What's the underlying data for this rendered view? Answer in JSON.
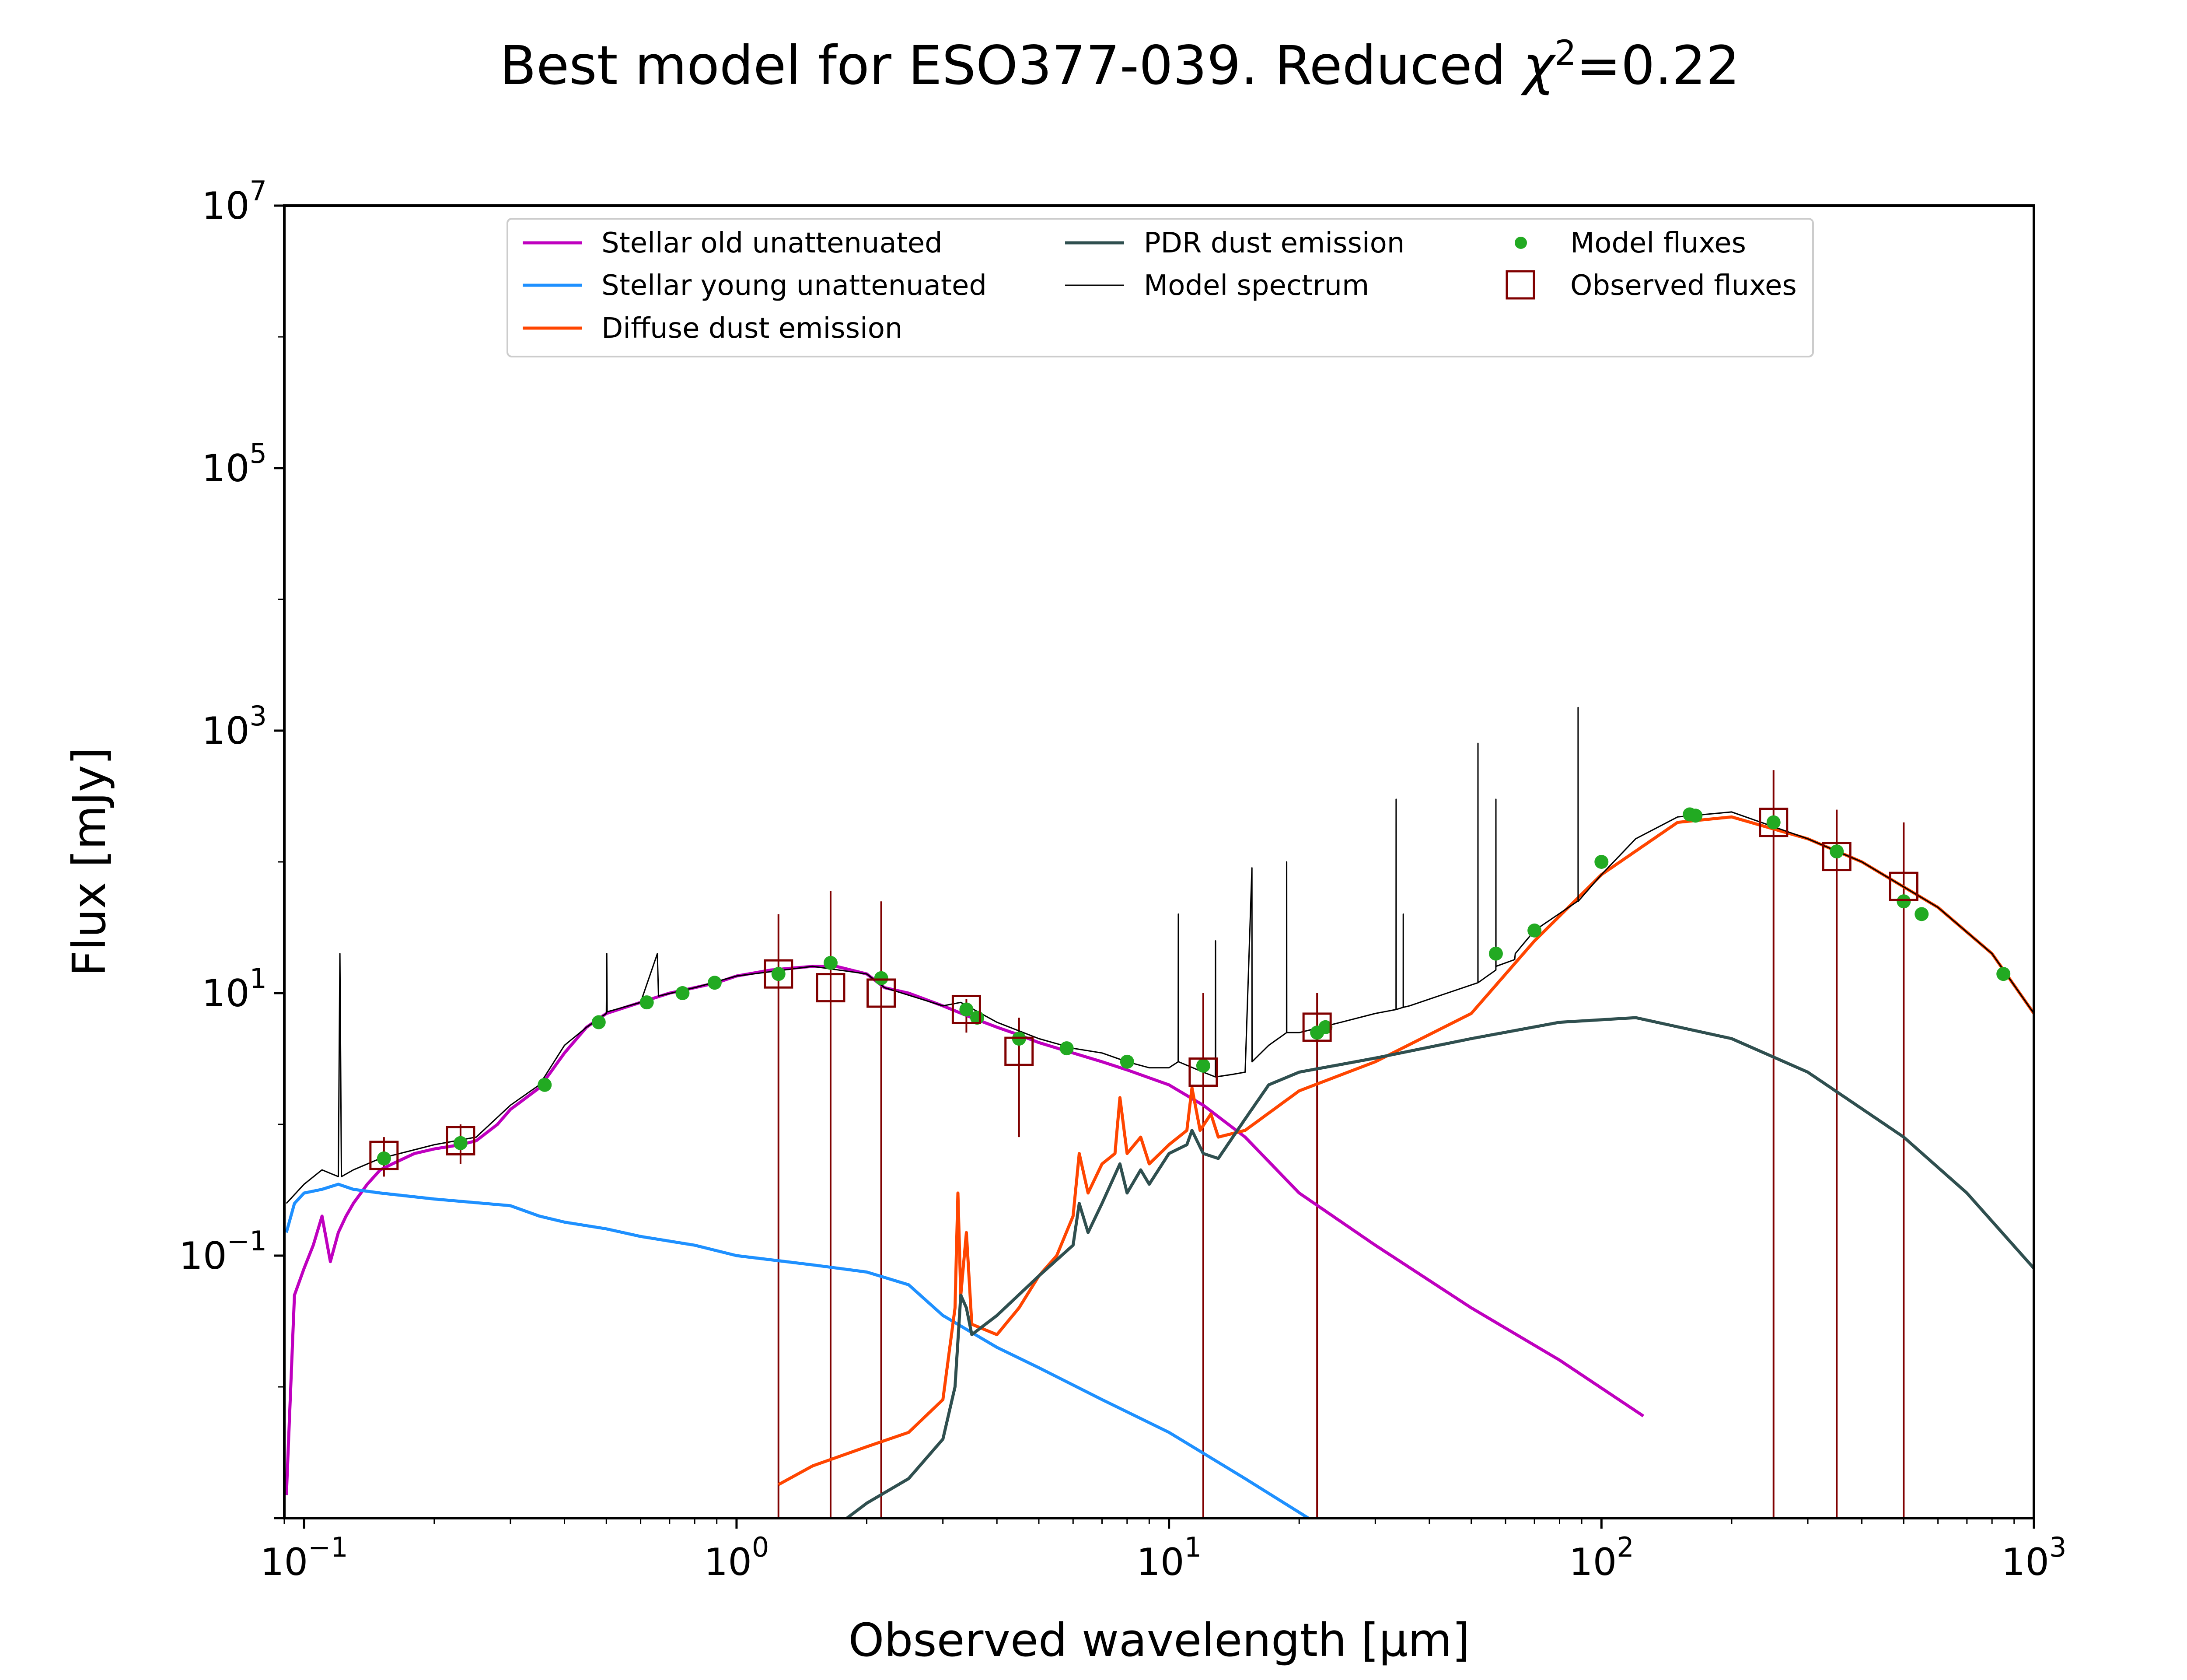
{
  "chart_data": {
    "type": "line",
    "title_main": "Best model for ESO377-039. Reduced ",
    "title_chi": "χ",
    "title_sup": "2",
    "title_value": "=0.22",
    "xlabel": "Observed wavelength [μm]",
    "ylabel": "Flux [mJy]",
    "x_scale": "log",
    "y_scale": "log",
    "xlim": [
      0.09,
      1000
    ],
    "ylim": [
      0.001,
      10000000
    ],
    "x_ticks": [
      {
        "value": 0.1,
        "base": "10",
        "exp": "−1"
      },
      {
        "value": 1,
        "base": "10",
        "exp": "0"
      },
      {
        "value": 10,
        "base": "10",
        "exp": "1"
      },
      {
        "value": 100,
        "base": "10",
        "exp": "2"
      },
      {
        "value": 1000,
        "base": "10",
        "exp": "3"
      }
    ],
    "y_ticks": [
      {
        "value": 0.1,
        "base": "10",
        "exp": "−1"
      },
      {
        "value": 10,
        "base": "10",
        "exp": "1"
      },
      {
        "value": 1000,
        "base": "10",
        "exp": "3"
      },
      {
        "value": 100000,
        "base": "10",
        "exp": "5"
      },
      {
        "value": 10000000,
        "base": "10",
        "exp": "7"
      }
    ],
    "legend_position": "top-center",
    "legend": [
      {
        "label": "Stellar old unattenuated",
        "kind": "line",
        "color": "#bf00bf"
      },
      {
        "label": "Stellar young unattenuated",
        "kind": "line",
        "color": "#1e90ff"
      },
      {
        "label": "Diffuse dust emission",
        "kind": "line",
        "color": "#ff4500"
      },
      {
        "label": "PDR dust emission",
        "kind": "line",
        "color": "#2f4f4f"
      },
      {
        "label": "Model spectrum",
        "kind": "thin",
        "color": "#000000"
      },
      {
        "label": "Model fluxes",
        "kind": "dot",
        "color": "#22aa22"
      },
      {
        "label": "Observed fluxes",
        "kind": "square",
        "color": "#800000"
      }
    ],
    "series": [
      {
        "name": "Stellar old unattenuated",
        "color": "#bf00bf",
        "width": 7,
        "points": [
          [
            0.091,
            0.0015
          ],
          [
            0.095,
            0.05
          ],
          [
            0.1,
            0.08
          ],
          [
            0.105,
            0.12
          ],
          [
            0.11,
            0.2
          ],
          [
            0.115,
            0.09
          ],
          [
            0.12,
            0.15
          ],
          [
            0.125,
            0.2
          ],
          [
            0.13,
            0.25
          ],
          [
            0.14,
            0.35
          ],
          [
            0.15,
            0.45
          ],
          [
            0.16,
            0.5
          ],
          [
            0.18,
            0.6
          ],
          [
            0.2,
            0.65
          ],
          [
            0.23,
            0.7
          ],
          [
            0.25,
            0.75
          ],
          [
            0.28,
            1.0
          ],
          [
            0.3,
            1.3
          ],
          [
            0.35,
            1.9
          ],
          [
            0.4,
            3.5
          ],
          [
            0.45,
            5.5
          ],
          [
            0.5,
            7.0
          ],
          [
            0.6,
            8.5
          ],
          [
            0.7,
            10
          ],
          [
            0.8,
            11
          ],
          [
            0.9,
            12
          ],
          [
            1.0,
            13.5
          ],
          [
            1.2,
            15
          ],
          [
            1.5,
            16
          ],
          [
            1.7,
            16
          ],
          [
            2.0,
            14
          ],
          [
            2.2,
            11
          ],
          [
            2.5,
            10
          ],
          [
            3.0,
            8.0
          ],
          [
            3.5,
            6.5
          ],
          [
            4.0,
            5.5
          ],
          [
            4.5,
            4.8
          ],
          [
            5.0,
            4.2
          ],
          [
            6.0,
            3.5
          ],
          [
            7.0,
            3.0
          ],
          [
            8.0,
            2.6
          ],
          [
            10,
            2.0
          ],
          [
            12,
            1.4
          ],
          [
            15,
            0.8
          ],
          [
            20,
            0.3
          ],
          [
            30,
            0.12
          ],
          [
            50,
            0.04
          ],
          [
            80,
            0.016
          ],
          [
            125,
            0.006
          ]
        ]
      },
      {
        "name": "Stellar young unattenuated",
        "color": "#1e90ff",
        "width": 7,
        "points": [
          [
            0.091,
            0.15
          ],
          [
            0.095,
            0.25
          ],
          [
            0.1,
            0.3
          ],
          [
            0.11,
            0.32
          ],
          [
            0.12,
            0.35
          ],
          [
            0.13,
            0.32
          ],
          [
            0.15,
            0.3
          ],
          [
            0.2,
            0.27
          ],
          [
            0.3,
            0.24
          ],
          [
            0.35,
            0.2
          ],
          [
            0.4,
            0.18
          ],
          [
            0.5,
            0.16
          ],
          [
            0.6,
            0.14
          ],
          [
            0.8,
            0.12
          ],
          [
            1.0,
            0.1
          ],
          [
            1.5,
            0.085
          ],
          [
            2.0,
            0.075
          ],
          [
            2.5,
            0.06
          ],
          [
            3.0,
            0.035
          ],
          [
            4.0,
            0.02
          ],
          [
            5.0,
            0.014
          ],
          [
            7.0,
            0.008
          ],
          [
            10,
            0.0045
          ],
          [
            15,
            0.002
          ],
          [
            21,
            0.001
          ]
        ]
      },
      {
        "name": "Diffuse dust emission",
        "color": "#ff4500",
        "width": 7,
        "points": [
          [
            1.25,
            0.0018
          ],
          [
            1.5,
            0.0025
          ],
          [
            2.0,
            0.0035
          ],
          [
            2.5,
            0.0045
          ],
          [
            3.0,
            0.008
          ],
          [
            3.2,
            0.04
          ],
          [
            3.25,
            0.3
          ],
          [
            3.3,
            0.05
          ],
          [
            3.4,
            0.15
          ],
          [
            3.5,
            0.03
          ],
          [
            4.0,
            0.025
          ],
          [
            4.5,
            0.04
          ],
          [
            5.0,
            0.07
          ],
          [
            5.5,
            0.1
          ],
          [
            6.0,
            0.2
          ],
          [
            6.2,
            0.6
          ],
          [
            6.5,
            0.3
          ],
          [
            7.0,
            0.5
          ],
          [
            7.5,
            0.6
          ],
          [
            7.7,
            1.6
          ],
          [
            8.0,
            0.6
          ],
          [
            8.6,
            0.8
          ],
          [
            9.0,
            0.5
          ],
          [
            10,
            0.7
          ],
          [
            11,
            0.9
          ],
          [
            11.3,
            1.9
          ],
          [
            11.8,
            0.9
          ],
          [
            12.5,
            1.2
          ],
          [
            13,
            0.8
          ],
          [
            15,
            0.9
          ],
          [
            20,
            1.8
          ],
          [
            30,
            3.0
          ],
          [
            50,
            7.0
          ],
          [
            70,
            25
          ],
          [
            100,
            80
          ],
          [
            150,
            200
          ],
          [
            200,
            220
          ],
          [
            300,
            150
          ],
          [
            400,
            100
          ],
          [
            600,
            45
          ],
          [
            800,
            20
          ],
          [
            1000,
            7
          ]
        ]
      },
      {
        "name": "PDR dust emission",
        "color": "#2f4f4f",
        "width": 7,
        "points": [
          [
            1.8,
            0.001
          ],
          [
            2.0,
            0.0013
          ],
          [
            2.5,
            0.002
          ],
          [
            3.0,
            0.004
          ],
          [
            3.2,
            0.01
          ],
          [
            3.3,
            0.05
          ],
          [
            3.4,
            0.04
          ],
          [
            3.5,
            0.025
          ],
          [
            4.0,
            0.035
          ],
          [
            5.0,
            0.07
          ],
          [
            6.0,
            0.12
          ],
          [
            6.2,
            0.25
          ],
          [
            6.5,
            0.15
          ],
          [
            7.0,
            0.25
          ],
          [
            7.7,
            0.5
          ],
          [
            8.0,
            0.3
          ],
          [
            8.6,
            0.45
          ],
          [
            9.0,
            0.35
          ],
          [
            10,
            0.6
          ],
          [
            11,
            0.7
          ],
          [
            11.3,
            0.9
          ],
          [
            12,
            0.6
          ],
          [
            13,
            0.55
          ],
          [
            15,
            1.1
          ],
          [
            17,
            2.0
          ],
          [
            20,
            2.5
          ],
          [
            30,
            3.2
          ],
          [
            50,
            4.5
          ],
          [
            80,
            6.0
          ],
          [
            120,
            6.5
          ],
          [
            200,
            4.5
          ],
          [
            300,
            2.5
          ],
          [
            500,
            0.8
          ],
          [
            700,
            0.3
          ],
          [
            1000,
            0.08
          ]
        ]
      },
      {
        "name": "Model spectrum",
        "color": "#000000",
        "width": 3,
        "points": [
          [
            0.091,
            0.25
          ],
          [
            0.1,
            0.35
          ],
          [
            0.11,
            0.45
          ],
          [
            0.12,
            0.4
          ],
          [
            0.121,
            20
          ],
          [
            0.122,
            0.4
          ],
          [
            0.13,
            0.45
          ],
          [
            0.15,
            0.55
          ],
          [
            0.2,
            0.7
          ],
          [
            0.25,
            0.8
          ],
          [
            0.3,
            1.4
          ],
          [
            0.35,
            2.0
          ],
          [
            0.4,
            4.0
          ],
          [
            0.45,
            5.5
          ],
          [
            0.5,
            7.0
          ],
          [
            0.501,
            20
          ],
          [
            0.502,
            7.2
          ],
          [
            0.6,
            8.5
          ],
          [
            0.656,
            20
          ],
          [
            0.66,
            9.5
          ],
          [
            0.8,
            11
          ],
          [
            1.0,
            13.5
          ],
          [
            1.5,
            16
          ],
          [
            2.0,
            14
          ],
          [
            2.2,
            11
          ],
          [
            3.0,
            8.0
          ],
          [
            3.3,
            8.5
          ],
          [
            4.0,
            6.0
          ],
          [
            5.0,
            4.5
          ],
          [
            6.0,
            3.8
          ],
          [
            7.0,
            3.5
          ],
          [
            8.0,
            3.0
          ],
          [
            9.0,
            2.7
          ],
          [
            10,
            2.7
          ],
          [
            10.5,
            3.0
          ],
          [
            10.51,
            40
          ],
          [
            10.52,
            3.0
          ],
          [
            12,
            2.5
          ],
          [
            12.8,
            2.3
          ],
          [
            12.81,
            25
          ],
          [
            12.82,
            2.3
          ],
          [
            14,
            2.4
          ],
          [
            15,
            2.5
          ],
          [
            15.55,
            90
          ],
          [
            15.56,
            3.0
          ],
          [
            17,
            4.0
          ],
          [
            18.7,
            5.0
          ],
          [
            18.71,
            100
          ],
          [
            18.72,
            5.0
          ],
          [
            20,
            5.0
          ],
          [
            25,
            6.0
          ],
          [
            30,
            7.0
          ],
          [
            33.5,
            7.5
          ],
          [
            33.51,
            300
          ],
          [
            33.52,
            7.5
          ],
          [
            34.8,
            7.8
          ],
          [
            34.81,
            40
          ],
          [
            34.82,
            7.8
          ],
          [
            36,
            8.0
          ],
          [
            40,
            9.0
          ],
          [
            51.8,
            12
          ],
          [
            51.81,
            800
          ],
          [
            51.82,
            12
          ],
          [
            57,
            15
          ],
          [
            57.01,
            300
          ],
          [
            57.02,
            16
          ],
          [
            63,
            18
          ],
          [
            63.2,
            20
          ],
          [
            70,
            30
          ],
          [
            88,
            50
          ],
          [
            88.3,
            50
          ],
          [
            88.31,
            1500
          ],
          [
            88.32,
            50
          ],
          [
            100,
            80
          ],
          [
            120,
            150
          ],
          [
            150,
            220
          ],
          [
            200,
            240
          ],
          [
            300,
            150
          ],
          [
            400,
            100
          ],
          [
            600,
            45
          ],
          [
            800,
            20
          ],
          [
            1000,
            7
          ]
        ]
      }
    ],
    "model_fluxes": [
      [
        0.153,
        0.55
      ],
      [
        0.23,
        0.72
      ],
      [
        0.36,
        2.0
      ],
      [
        0.48,
        6.0
      ],
      [
        0.62,
        8.5
      ],
      [
        0.75,
        10
      ],
      [
        0.89,
        12
      ],
      [
        1.25,
        14
      ],
      [
        1.65,
        17
      ],
      [
        2.16,
        13
      ],
      [
        3.4,
        7.5
      ],
      [
        3.6,
        6.5
      ],
      [
        4.5,
        4.5
      ],
      [
        5.8,
        3.8
      ],
      [
        8.0,
        3.0
      ],
      [
        12,
        2.8
      ],
      [
        22,
        5.0
      ],
      [
        23,
        5.5
      ],
      [
        57,
        20
      ],
      [
        70,
        30
      ],
      [
        100,
        100
      ],
      [
        160,
        230
      ],
      [
        165,
        225
      ],
      [
        250,
        200
      ],
      [
        350,
        120
      ],
      [
        500,
        50
      ],
      [
        550,
        40
      ],
      [
        850,
        14
      ]
    ],
    "observed_fluxes": [
      {
        "x": 0.153,
        "y": 0.58,
        "ylo": 0.4,
        "yhi": 0.8
      },
      {
        "x": 0.23,
        "y": 0.75,
        "ylo": 0.5,
        "yhi": 1.0
      },
      {
        "x": 1.25,
        "y": 14,
        "ylo": 0.001,
        "yhi": 40
      },
      {
        "x": 1.65,
        "y": 11,
        "ylo": 0.001,
        "yhi": 60
      },
      {
        "x": 2.16,
        "y": 10,
        "ylo": 0.001,
        "yhi": 50
      },
      {
        "x": 3.4,
        "y": 7.5,
        "ylo": 5,
        "yhi": 9
      },
      {
        "x": 4.5,
        "y": 3.6,
        "ylo": 0.8,
        "yhi": 6.5
      },
      {
        "x": 12,
        "y": 2.5,
        "ylo": 0.001,
        "yhi": 10
      },
      {
        "x": 22,
        "y": 5.5,
        "ylo": 0.001,
        "yhi": 10
      },
      {
        "x": 250,
        "y": 200,
        "ylo": 0.001,
        "yhi": 500
      },
      {
        "x": 350,
        "y": 110,
        "ylo": 0.001,
        "yhi": 250
      },
      {
        "x": 500,
        "y": 65,
        "ylo": 0.001,
        "yhi": 200
      }
    ]
  }
}
